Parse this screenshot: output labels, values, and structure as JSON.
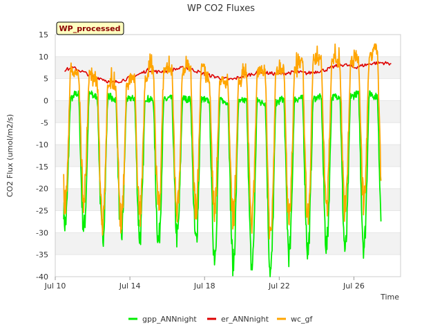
{
  "chart_data": {
    "type": "line",
    "title": "WP CO2 Fluxes",
    "badge": "WP_processed",
    "xlabel": "Time",
    "ylabel": "CO2 Flux (umol/m2/s)",
    "xlim": [
      10,
      28.5
    ],
    "ylim": [
      -40,
      15
    ],
    "x_ticks": [
      {
        "value": 10,
        "label": "Jul 10"
      },
      {
        "value": 14,
        "label": "Jul 14"
      },
      {
        "value": 18,
        "label": "Jul 18"
      },
      {
        "value": 22,
        "label": "Jul 22"
      },
      {
        "value": 26,
        "label": "Jul 26"
      }
    ],
    "y_ticks": [
      15,
      10,
      5,
      0,
      -5,
      -10,
      -15,
      -20,
      -25,
      -30,
      -35,
      -40
    ],
    "grid": "horizontal-bands",
    "legend_position": "bottom",
    "day_start": 10,
    "day_count": 18,
    "series": [
      {
        "name": "gpp_ANNnight",
        "color": "#00ee00",
        "kind": "gpp",
        "daily_min": [
          -28,
          -29,
          -31,
          -31,
          -31,
          -32,
          -31,
          -32,
          -35,
          -37,
          -38,
          -39,
          -35,
          -34,
          -33,
          -34,
          -33,
          -30
        ],
        "night_level": [
          0.5,
          1.5,
          1.0,
          0.3,
          0.5,
          0.2,
          0.5,
          0.3,
          0.0,
          -0.3,
          0.0,
          -0.5,
          0.3,
          0.5,
          0.8,
          1.0,
          1.5,
          1.0
        ]
      },
      {
        "name": "er_ANNnight",
        "color": "#dd0000",
        "kind": "er",
        "points": [
          [
            10.5,
            7.0
          ],
          [
            11.0,
            7.4
          ],
          [
            11.5,
            6.5
          ],
          [
            12.0,
            5.5
          ],
          [
            12.5,
            5.0
          ],
          [
            13.0,
            4.0
          ],
          [
            13.5,
            4.5
          ],
          [
            14.0,
            5.2
          ],
          [
            14.5,
            6.0
          ],
          [
            15.0,
            7.0
          ],
          [
            15.5,
            6.5
          ],
          [
            16.0,
            6.8
          ],
          [
            16.5,
            7.2
          ],
          [
            17.0,
            7.5
          ],
          [
            17.5,
            6.8
          ],
          [
            18.0,
            6.0
          ],
          [
            18.5,
            5.5
          ],
          [
            19.0,
            5.0
          ],
          [
            19.5,
            4.8
          ],
          [
            20.0,
            5.5
          ],
          [
            20.5,
            6.0
          ],
          [
            21.0,
            6.5
          ],
          [
            21.5,
            6.2
          ],
          [
            22.0,
            6.0
          ],
          [
            22.5,
            6.3
          ],
          [
            23.0,
            6.5
          ],
          [
            23.5,
            6.2
          ],
          [
            24.0,
            6.6
          ],
          [
            24.5,
            7.0
          ],
          [
            25.0,
            7.8
          ],
          [
            25.5,
            8.2
          ],
          [
            26.0,
            7.5
          ],
          [
            26.5,
            8.0
          ],
          [
            27.0,
            8.5
          ],
          [
            27.5,
            8.6
          ],
          [
            28.0,
            8.4
          ]
        ]
      },
      {
        "name": "wc_gf",
        "color": "#ffa500",
        "kind": "wc",
        "daily_min": [
          -24,
          -22,
          -27,
          -28,
          -26,
          -24,
          -25,
          -25,
          -24,
          -26,
          -28,
          -31,
          -27,
          -26,
          -24,
          -25,
          -23,
          -22
        ],
        "night_peak": [
          7.5,
          7.0,
          5.0,
          4.5,
          6.0,
          8.5,
          7.5,
          9.0,
          6.0,
          5.0,
          7.0,
          8.0,
          8.0,
          10.0,
          10.5,
          9.5,
          11.0,
          13.0
        ]
      }
    ]
  }
}
